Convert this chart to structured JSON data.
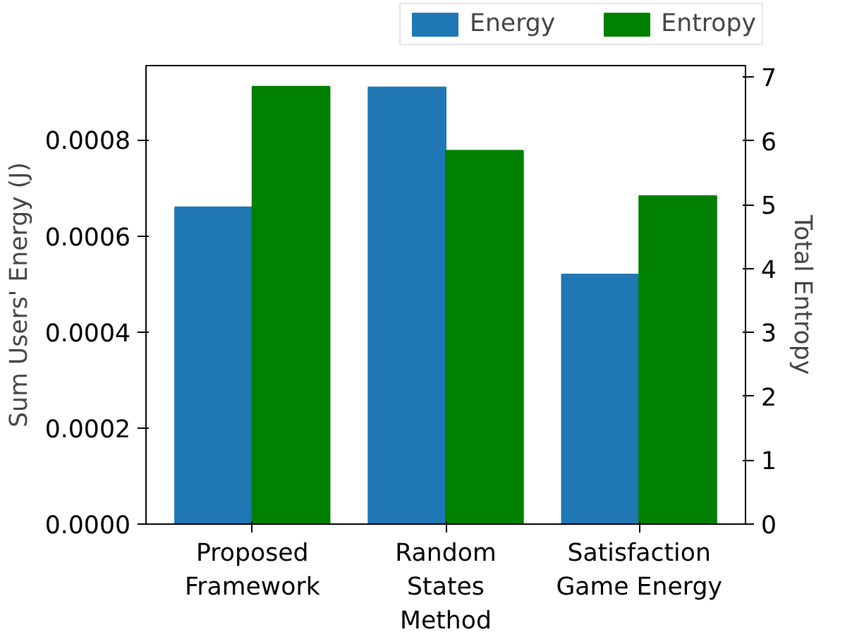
{
  "chart_data": {
    "type": "bar",
    "categories": [
      "Proposed\nFramework",
      "Random\nStates\nMethod",
      "Satisfaction\nGame Energy"
    ],
    "ylabel": "Sum Users' Energy (J)",
    "y2label": "Total Entropy",
    "ylim": [
      0,
      0.000955
    ],
    "yticks": [
      {
        "value": 0,
        "label": "0.0000"
      },
      {
        "value": 0.0002,
        "label": "0.0002"
      },
      {
        "value": 0.0004,
        "label": "0.0004"
      },
      {
        "value": 0.0006,
        "label": "0.0006"
      },
      {
        "value": 0.0008,
        "label": "0.0008"
      }
    ],
    "y2lim": [
      0,
      7.18
    ],
    "y2ticks": [
      0,
      1,
      2,
      3,
      4,
      5,
      6,
      7
    ],
    "series": [
      {
        "name": "Energy",
        "color": "#1f77b4",
        "values": [
          0.00066,
          0.00091,
          0.00052
        ]
      },
      {
        "name": "Entropy",
        "color": "#008000",
        "values": [
          6.85,
          5.85,
          5.14
        ],
        "axis": "y2"
      }
    ],
    "legend": "top right",
    "grid": false
  }
}
